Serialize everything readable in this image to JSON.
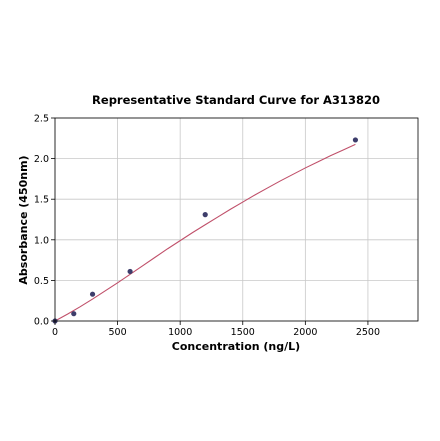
{
  "chart_data": {
    "type": "scatter",
    "title": "Representative Standard Curve for A313820",
    "xlabel": "Concentration (ng/L)",
    "ylabel": "Absorbance (450nm)",
    "xlim": [
      0,
      2900
    ],
    "ylim": [
      0,
      2.5
    ],
    "xticks": [
      0,
      500,
      1000,
      1500,
      2000,
      2500
    ],
    "yticks": [
      0.0,
      0.5,
      1.0,
      1.5,
      2.0,
      2.5
    ],
    "xtick_labels": [
      "0",
      "500",
      "1000",
      "1500",
      "2000",
      "2500"
    ],
    "ytick_labels": [
      "0.0",
      "0.5",
      "1.0",
      "1.5",
      "2.0",
      "2.5"
    ],
    "grid": true,
    "series": [
      {
        "type": "scatter",
        "color": "#3d3d6b",
        "x": [
          0,
          150,
          300,
          600,
          1200,
          2400
        ],
        "y": [
          0.0,
          0.09,
          0.33,
          0.61,
          1.31,
          2.23
        ]
      },
      {
        "type": "line",
        "color": "#c0506a",
        "x": [
          0,
          100,
          200,
          300,
          400,
          500,
          600,
          700,
          800,
          900,
          1000,
          1100,
          1200,
          1300,
          1400,
          1500,
          1600,
          1700,
          1800,
          1900,
          2000,
          2100,
          2200,
          2300,
          2400
        ],
        "y": [
          0.0,
          0.085,
          0.175,
          0.27,
          0.37,
          0.47,
          0.575,
          0.68,
          0.785,
          0.89,
          0.99,
          1.09,
          1.185,
          1.28,
          1.375,
          1.465,
          1.555,
          1.64,
          1.725,
          1.805,
          1.885,
          1.96,
          2.035,
          2.105,
          2.175
        ]
      }
    ]
  }
}
